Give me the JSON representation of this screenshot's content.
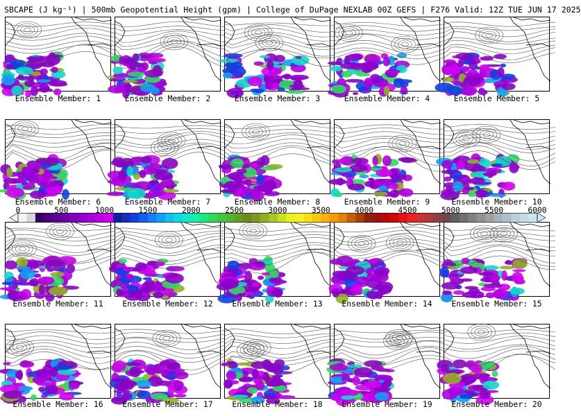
{
  "title": "SBCAPE (J kg⁻¹) | 500mb Geopotential Height (gpm) | College of DuPage NEXLAB 00Z GEFS | F276 Valid: 12Z TUE JUN 17 2025",
  "panels": [
    {
      "label": "Ensemble Member: 1"
    },
    {
      "label": "Ensemble Member: 2"
    },
    {
      "label": "Ensemble Member: 3"
    },
    {
      "label": "Ensemble Member: 4"
    },
    {
      "label": "Ensemble Member: 5"
    },
    {
      "label": "Ensemble Member: 6"
    },
    {
      "label": "Ensemble Member: 7"
    },
    {
      "label": "Ensemble Member: 8"
    },
    {
      "label": "Ensemble Member: 9"
    },
    {
      "label": "Ensemble Member: 10"
    },
    {
      "label": "Ensemble Member: 11"
    },
    {
      "label": "Ensemble Member: 12"
    },
    {
      "label": "Ensemble Member: 13"
    },
    {
      "label": "Ensemble Member: 14"
    },
    {
      "label": "Ensemble Member: 15"
    },
    {
      "label": "Ensemble Member: 16"
    },
    {
      "label": "Ensemble Member: 17"
    },
    {
      "label": "Ensemble Member: 18"
    },
    {
      "label": "Ensemble Member: 19"
    },
    {
      "label": "Ensemble Member: 20"
    }
  ],
  "colorbar": {
    "ticks": [
      "0",
      "500",
      "1000",
      "1500",
      "2000",
      "2500",
      "3000",
      "3500",
      "4000",
      "4500",
      "5000",
      "5500",
      "6000"
    ],
    "min": 0,
    "max": 6000,
    "step": 100,
    "colors": [
      "#f4f4f4",
      "#d8d8d8",
      "#3a006a",
      "#4a0080",
      "#5c0094",
      "#6e00a8",
      "#8000bc",
      "#9400cc",
      "#a800da",
      "#bc00e6",
      "#d000f0",
      "#1020a0",
      "#1030c0",
      "#1040e0",
      "#1060f0",
      "#1080f8",
      "#10a0f8",
      "#10c0f0",
      "#10d8e0",
      "#10e8c8",
      "#10f0a8",
      "#20e880",
      "#30d860",
      "#40c840",
      "#50b830",
      "#60a020",
      "#708820",
      "#809820",
      "#90b020",
      "#a8c820",
      "#c8e020",
      "#e8f020",
      "#f8f020",
      "#f8e010",
      "#f8c810",
      "#f8b010",
      "#f89810",
      "#e88008",
      "#c86008",
      "#a84008",
      "#902010",
      "#a01010",
      "#b80808",
      "#d00808",
      "#e81010",
      "#f02020",
      "#d03030",
      "#b03838",
      "#904040",
      "#704848",
      "#606060",
      "#707070",
      "#808080",
      "#909090",
      "#a0a0a0",
      "#a8b0b8",
      "#b0c0c8",
      "#b8d0d8",
      "#c0dce4",
      "#c8e8f0"
    ]
  }
}
